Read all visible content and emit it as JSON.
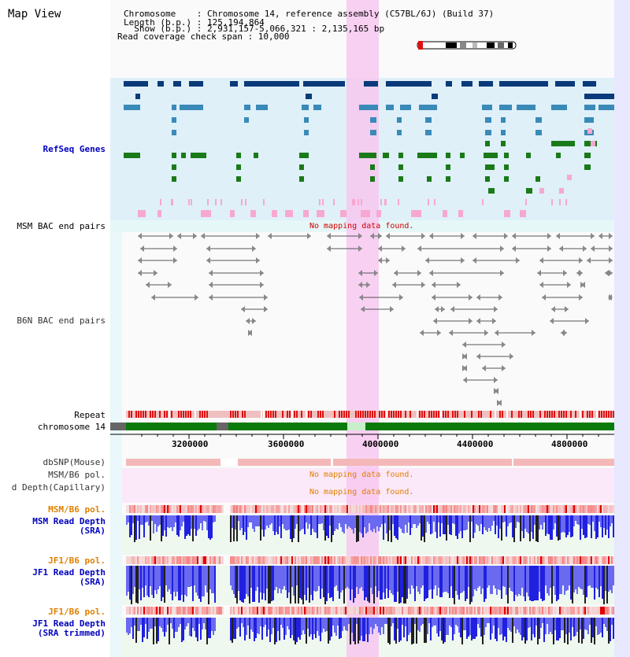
{
  "app": {
    "title": "Map View"
  },
  "info": {
    "chromosome_line": "Chromosome    : Chromosome 14, reference assembly (C57BL/6J) (Build 37)",
    "length_line": "Length (b.p.) : 125,194,864",
    "show_line": "  Show (b.p.) : 2,931,157-5,066,321 : 2,135,165 bp",
    "coverage_line": "Read coverage check span : 10,000"
  },
  "tracks": {
    "refseq_label": "RefSeq Genes",
    "msm_bac_label": "MSM BAC end pairs",
    "msm_bac_nomap": "No mapping data found.",
    "b6n_bac_label": "B6N BAC end pairs",
    "repeat_label": "Repeat",
    "chromosome_label": "chromosome 14",
    "dbsnp_label": "dbSNP(Mouse)",
    "msm_b6_pol_cap_label": "MSM/B6 pol.",
    "read_depth_cap_label": "d Depth(Capillary)",
    "nomap_pol": "No mapping data found.",
    "nomap_depth": "No mapping data found.",
    "msm_b6_pol_label": "MSM/B6 pol.",
    "msm_read_depth_label1": "MSM Read Depth",
    "msm_read_depth_label2": "(SRA)",
    "jf1_b6_pol_label": "JF1/B6 pol.",
    "jf1_read_depth_label1": "JF1 Read Depth",
    "jf1_read_depth_label2": "(SRA)",
    "jf1_b6_pol2_label": "JF1/B6 pol.",
    "jf1_trim_label1": "JF1 Read Depth",
    "jf1_trim_label2": "(SRA trimmed)"
  },
  "axis": {
    "ticks": [
      "3200000",
      "3600000",
      "4000000",
      "4400000",
      "4800000"
    ]
  },
  "colors": {
    "refseq_bg": "#dff0f8",
    "highlight": "#f7c8f0",
    "gene_dark": "#0a3a7a",
    "gene_mid": "#3a8ab8",
    "gene_green": "#1a7a1a",
    "pink": "#f7a8d0",
    "repeat_red": "#e01010",
    "chrom_green": "#0a7a0a",
    "depth_blue": "#2020e0",
    "depth_black": "#202020"
  }
}
